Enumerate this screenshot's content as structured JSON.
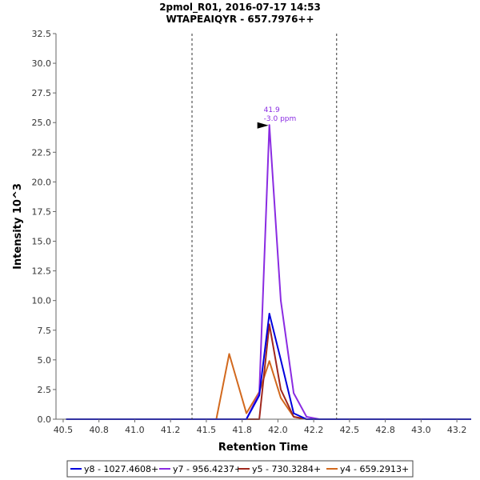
{
  "chart_data": {
    "type": "line",
    "title": "2pmol_R01, 2016-07-17 14:53",
    "subtitle": "WTAPEAIQYR - 657.7976++",
    "xlabel": "Retention Time",
    "ylabel": "Intensity 10^3",
    "xlim": [
      40.45,
      43.35
    ],
    "ylim": [
      0,
      32.5
    ],
    "xticks": [
      "40.5",
      "40.8",
      "41.0",
      "41.2",
      "41.5",
      "41.8",
      "42.0",
      "42.2",
      "42.5",
      "42.8",
      "43.0",
      "43.2"
    ],
    "xtick_values": [
      40.5,
      40.75,
      41.0,
      41.25,
      41.5,
      41.75,
      42.0,
      42.25,
      42.5,
      42.75,
      43.0,
      43.25
    ],
    "yticks": [
      "0.0",
      "2.5",
      "5.0",
      "7.5",
      "10.0",
      "12.5",
      "15.0",
      "17.5",
      "20.0",
      "22.5",
      "25.0",
      "27.5",
      "30.0",
      "32.5"
    ],
    "ytick_values": [
      0,
      2.5,
      5,
      7.5,
      10,
      12.5,
      15,
      17.5,
      20,
      22.5,
      25,
      27.5,
      30,
      32.5
    ],
    "integration_bounds": [
      41.4,
      42.41
    ],
    "peak_annotation": {
      "rt_label": "41.9",
      "ppm_label": "-3.0 ppm",
      "x": 41.94,
      "y": 24.8,
      "color": "#8a2be2"
    },
    "series": [
      {
        "name": "y8 - 1027.4608+",
        "color": "#0000dd",
        "x": [
          40.52,
          41.38,
          41.78,
          41.87,
          41.94,
          42.02,
          42.11,
          42.2,
          43.35
        ],
        "values": [
          0,
          0,
          0,
          2.0,
          8.9,
          5.0,
          0.5,
          0,
          0
        ]
      },
      {
        "name": "y7 - 956.4237+",
        "color": "#8a2be2",
        "x": [
          40.52,
          41.38,
          41.78,
          41.87,
          41.94,
          42.02,
          42.11,
          42.2,
          42.29,
          43.35
        ],
        "values": [
          0,
          0,
          0,
          2.2,
          24.8,
          10.0,
          2.2,
          0.2,
          0,
          0
        ]
      },
      {
        "name": "y5 - 730.3284+",
        "color": "#a0281e",
        "x": [
          40.52,
          41.38,
          41.87,
          41.94,
          42.02,
          42.11,
          42.2,
          43.35
        ],
        "values": [
          0,
          0,
          0,
          8.0,
          2.5,
          0.2,
          0,
          0
        ]
      },
      {
        "name": "y4 - 659.2913+",
        "color": "#d2691e",
        "x": [
          40.52,
          41.38,
          41.57,
          41.66,
          41.78,
          41.87,
          41.94,
          42.02,
          42.11,
          42.2,
          43.35
        ],
        "values": [
          0,
          0,
          0,
          5.5,
          0.5,
          2.3,
          4.9,
          1.8,
          0.2,
          0,
          0
        ]
      }
    ]
  }
}
